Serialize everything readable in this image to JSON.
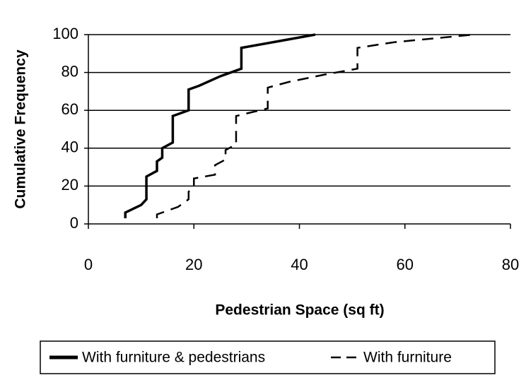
{
  "chart_data": {
    "type": "line",
    "xlabel": "Pedestrian Space (sq ft)",
    "ylabel": "Cumulative Frequency",
    "xlim": [
      0,
      80
    ],
    "xticks": [
      0,
      20,
      40,
      60,
      80
    ],
    "ylim": [
      0,
      100
    ],
    "yticks": [
      0,
      20,
      40,
      60,
      80,
      100
    ],
    "grid": true,
    "legend": "bottom",
    "series": [
      {
        "name": "With furniture & pedestrians",
        "color": "#000000",
        "dash": false,
        "x": [
          7,
          7,
          10,
          11,
          11,
          13,
          13,
          14,
          14,
          16,
          16,
          19,
          19,
          21,
          25,
          28,
          29,
          29,
          35,
          43
        ],
        "values": [
          3,
          6,
          10,
          13,
          25,
          28,
          33,
          35,
          40,
          43,
          57,
          60,
          71,
          73,
          78,
          81,
          82,
          93,
          96,
          100
        ]
      },
      {
        "name": "With furniture",
        "color": "#000000",
        "dash": true,
        "x": [
          13,
          13,
          17,
          19,
          19,
          20,
          20,
          24,
          24,
          26,
          26,
          28,
          28,
          31,
          34,
          34,
          38,
          45,
          47,
          51,
          51,
          58,
          73
        ],
        "values": [
          3,
          5,
          9,
          13,
          17,
          20,
          24,
          26,
          31,
          34,
          39,
          42,
          57,
          59,
          61,
          72,
          75,
          79,
          80,
          82,
          93,
          96,
          100
        ]
      }
    ]
  }
}
